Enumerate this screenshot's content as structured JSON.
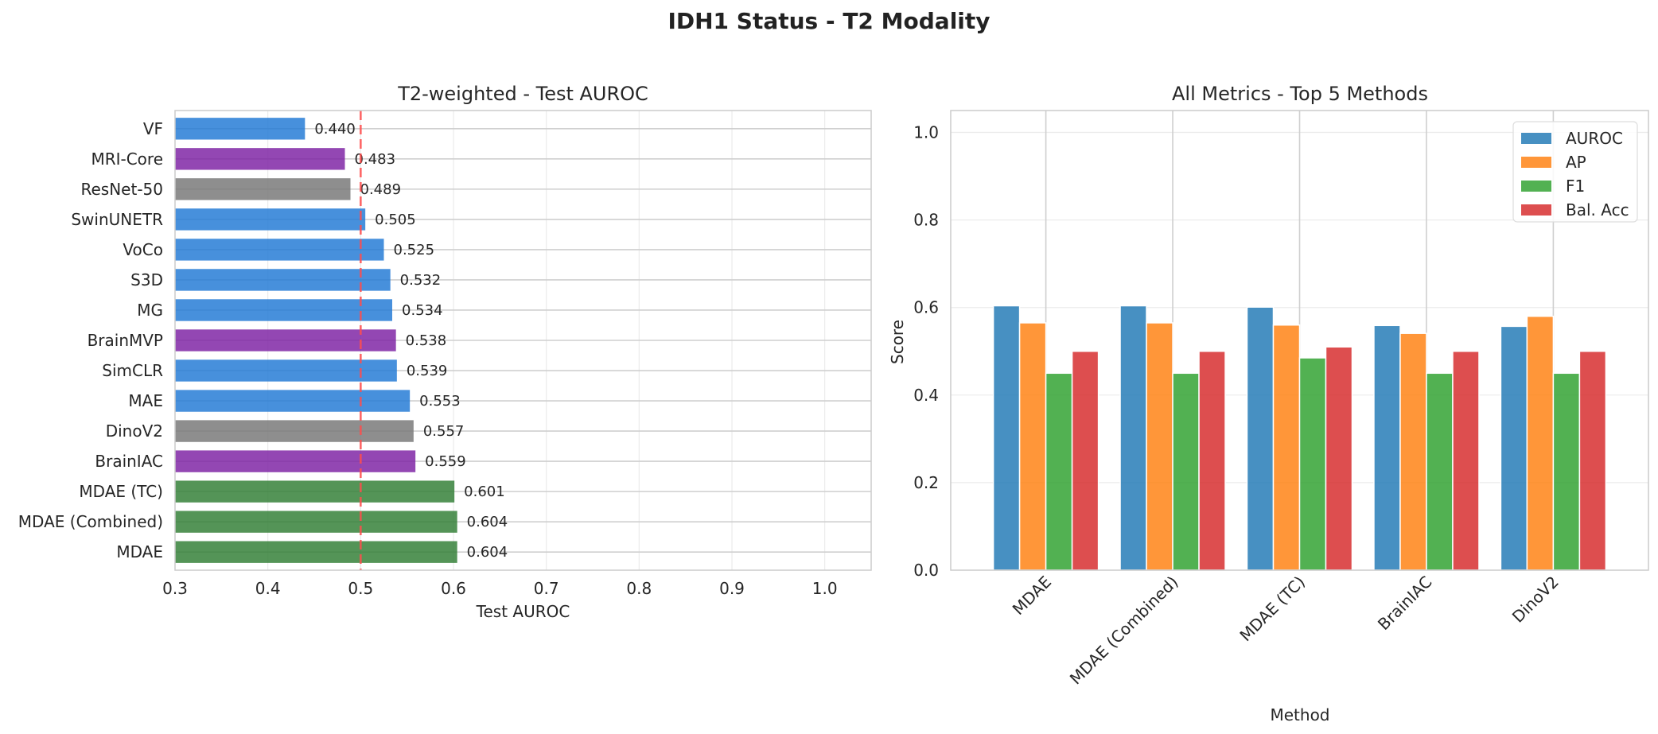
{
  "figure": {
    "title": "IDH1 Status - T2 Modality"
  },
  "colors": {
    "blue_group": "#1f77d4",
    "purple_group": "#7b1fa2",
    "gray_group": "#757575",
    "green_group": "#2e7d32",
    "reference_line": "#ff4d4d",
    "auroc": "#1f77b4",
    "ap": "#ff7f0e",
    "f1": "#2ca02c",
    "bal_acc": "#d62728"
  },
  "chart_data": [
    {
      "type": "bar",
      "orientation": "horizontal",
      "title": "T2-weighted - Test AUROC",
      "xlabel": "Test AUROC",
      "ylabel": "",
      "xlim": [
        0.3,
        1.05
      ],
      "xticks": [
        "0.3",
        "0.4",
        "0.5",
        "0.6",
        "0.7",
        "0.8",
        "0.9",
        "1.0"
      ],
      "reference_line": 0.5,
      "grid": true,
      "categories": [
        "VF",
        "MRI-Core",
        "ResNet-50",
        "SwinUNETR",
        "VoCo",
        "S3D",
        "MG",
        "BrainMVP",
        "SimCLR",
        "MAE",
        "DinoV2",
        "BrainIAC",
        "MDAE (TC)",
        "MDAE (Combined)",
        "MDAE"
      ],
      "values": [
        0.44,
        0.483,
        0.489,
        0.505,
        0.525,
        0.532,
        0.534,
        0.538,
        0.539,
        0.553,
        0.557,
        0.559,
        0.601,
        0.604,
        0.604
      ],
      "value_labels": [
        "0.440",
        "0.483",
        "0.489",
        "0.505",
        "0.525",
        "0.532",
        "0.534",
        "0.538",
        "0.539",
        "0.553",
        "0.557",
        "0.559",
        "0.601",
        "0.604",
        "0.604"
      ],
      "bar_groups": [
        "blue",
        "purple",
        "gray",
        "blue",
        "blue",
        "blue",
        "blue",
        "purple",
        "blue",
        "blue",
        "gray",
        "purple",
        "green",
        "green",
        "green"
      ]
    },
    {
      "type": "bar",
      "title": "All Metrics - Top 5 Methods",
      "xlabel": "Method",
      "ylabel": "Score",
      "ylim": [
        0,
        1.05
      ],
      "yticks": [
        "0.0",
        "0.2",
        "0.4",
        "0.6",
        "0.8",
        "1.0"
      ],
      "grid": true,
      "legend_position": "top-right",
      "categories": [
        "MDAE",
        "MDAE (Combined)",
        "MDAE (TC)",
        "BrainIAC",
        "DinoV2"
      ],
      "series": [
        {
          "name": "AUROC",
          "values": [
            0.604,
            0.604,
            0.601,
            0.559,
            0.557
          ]
        },
        {
          "name": "AP",
          "values": [
            0.565,
            0.565,
            0.56,
            0.541,
            0.58
          ]
        },
        {
          "name": "F1",
          "values": [
            0.45,
            0.45,
            0.485,
            0.45,
            0.45
          ]
        },
        {
          "name": "Bal. Acc",
          "values": [
            0.5,
            0.5,
            0.51,
            0.5,
            0.5
          ]
        }
      ]
    }
  ]
}
